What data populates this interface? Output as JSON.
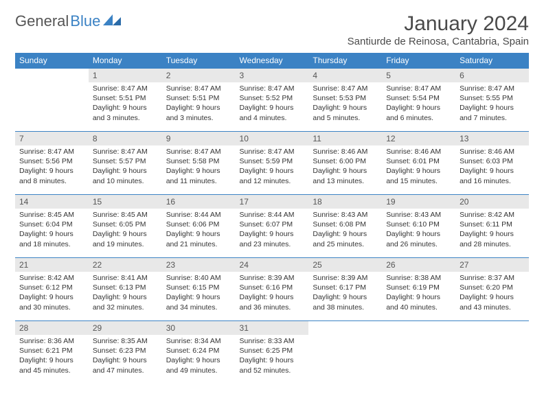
{
  "logo": {
    "part1": "General",
    "part2": "Blue"
  },
  "title": "January 2024",
  "location": "Santiurde de Reinosa, Cantabria, Spain",
  "weekdays": [
    "Sunday",
    "Monday",
    "Tuesday",
    "Wednesday",
    "Thursday",
    "Friday",
    "Saturday"
  ],
  "colors": {
    "header_bg": "#3b82c4",
    "header_text": "#ffffff",
    "daynum_bg": "#e8e8e8",
    "text": "#333333",
    "border": "#3b82c4"
  },
  "start_offset": 1,
  "days": [
    {
      "n": 1,
      "sunrise": "8:47 AM",
      "sunset": "5:51 PM",
      "dl": "9 hours and 3 minutes."
    },
    {
      "n": 2,
      "sunrise": "8:47 AM",
      "sunset": "5:51 PM",
      "dl": "9 hours and 3 minutes."
    },
    {
      "n": 3,
      "sunrise": "8:47 AM",
      "sunset": "5:52 PM",
      "dl": "9 hours and 4 minutes."
    },
    {
      "n": 4,
      "sunrise": "8:47 AM",
      "sunset": "5:53 PM",
      "dl": "9 hours and 5 minutes."
    },
    {
      "n": 5,
      "sunrise": "8:47 AM",
      "sunset": "5:54 PM",
      "dl": "9 hours and 6 minutes."
    },
    {
      "n": 6,
      "sunrise": "8:47 AM",
      "sunset": "5:55 PM",
      "dl": "9 hours and 7 minutes."
    },
    {
      "n": 7,
      "sunrise": "8:47 AM",
      "sunset": "5:56 PM",
      "dl": "9 hours and 8 minutes."
    },
    {
      "n": 8,
      "sunrise": "8:47 AM",
      "sunset": "5:57 PM",
      "dl": "9 hours and 10 minutes."
    },
    {
      "n": 9,
      "sunrise": "8:47 AM",
      "sunset": "5:58 PM",
      "dl": "9 hours and 11 minutes."
    },
    {
      "n": 10,
      "sunrise": "8:47 AM",
      "sunset": "5:59 PM",
      "dl": "9 hours and 12 minutes."
    },
    {
      "n": 11,
      "sunrise": "8:46 AM",
      "sunset": "6:00 PM",
      "dl": "9 hours and 13 minutes."
    },
    {
      "n": 12,
      "sunrise": "8:46 AM",
      "sunset": "6:01 PM",
      "dl": "9 hours and 15 minutes."
    },
    {
      "n": 13,
      "sunrise": "8:46 AM",
      "sunset": "6:03 PM",
      "dl": "9 hours and 16 minutes."
    },
    {
      "n": 14,
      "sunrise": "8:45 AM",
      "sunset": "6:04 PM",
      "dl": "9 hours and 18 minutes."
    },
    {
      "n": 15,
      "sunrise": "8:45 AM",
      "sunset": "6:05 PM",
      "dl": "9 hours and 19 minutes."
    },
    {
      "n": 16,
      "sunrise": "8:44 AM",
      "sunset": "6:06 PM",
      "dl": "9 hours and 21 minutes."
    },
    {
      "n": 17,
      "sunrise": "8:44 AM",
      "sunset": "6:07 PM",
      "dl": "9 hours and 23 minutes."
    },
    {
      "n": 18,
      "sunrise": "8:43 AM",
      "sunset": "6:08 PM",
      "dl": "9 hours and 25 minutes."
    },
    {
      "n": 19,
      "sunrise": "8:43 AM",
      "sunset": "6:10 PM",
      "dl": "9 hours and 26 minutes."
    },
    {
      "n": 20,
      "sunrise": "8:42 AM",
      "sunset": "6:11 PM",
      "dl": "9 hours and 28 minutes."
    },
    {
      "n": 21,
      "sunrise": "8:42 AM",
      "sunset": "6:12 PM",
      "dl": "9 hours and 30 minutes."
    },
    {
      "n": 22,
      "sunrise": "8:41 AM",
      "sunset": "6:13 PM",
      "dl": "9 hours and 32 minutes."
    },
    {
      "n": 23,
      "sunrise": "8:40 AM",
      "sunset": "6:15 PM",
      "dl": "9 hours and 34 minutes."
    },
    {
      "n": 24,
      "sunrise": "8:39 AM",
      "sunset": "6:16 PM",
      "dl": "9 hours and 36 minutes."
    },
    {
      "n": 25,
      "sunrise": "8:39 AM",
      "sunset": "6:17 PM",
      "dl": "9 hours and 38 minutes."
    },
    {
      "n": 26,
      "sunrise": "8:38 AM",
      "sunset": "6:19 PM",
      "dl": "9 hours and 40 minutes."
    },
    {
      "n": 27,
      "sunrise": "8:37 AM",
      "sunset": "6:20 PM",
      "dl": "9 hours and 43 minutes."
    },
    {
      "n": 28,
      "sunrise": "8:36 AM",
      "sunset": "6:21 PM",
      "dl": "9 hours and 45 minutes."
    },
    {
      "n": 29,
      "sunrise": "8:35 AM",
      "sunset": "6:23 PM",
      "dl": "9 hours and 47 minutes."
    },
    {
      "n": 30,
      "sunrise": "8:34 AM",
      "sunset": "6:24 PM",
      "dl": "9 hours and 49 minutes."
    },
    {
      "n": 31,
      "sunrise": "8:33 AM",
      "sunset": "6:25 PM",
      "dl": "9 hours and 52 minutes."
    }
  ],
  "labels": {
    "sunrise": "Sunrise:",
    "sunset": "Sunset:",
    "daylight": "Daylight:"
  }
}
